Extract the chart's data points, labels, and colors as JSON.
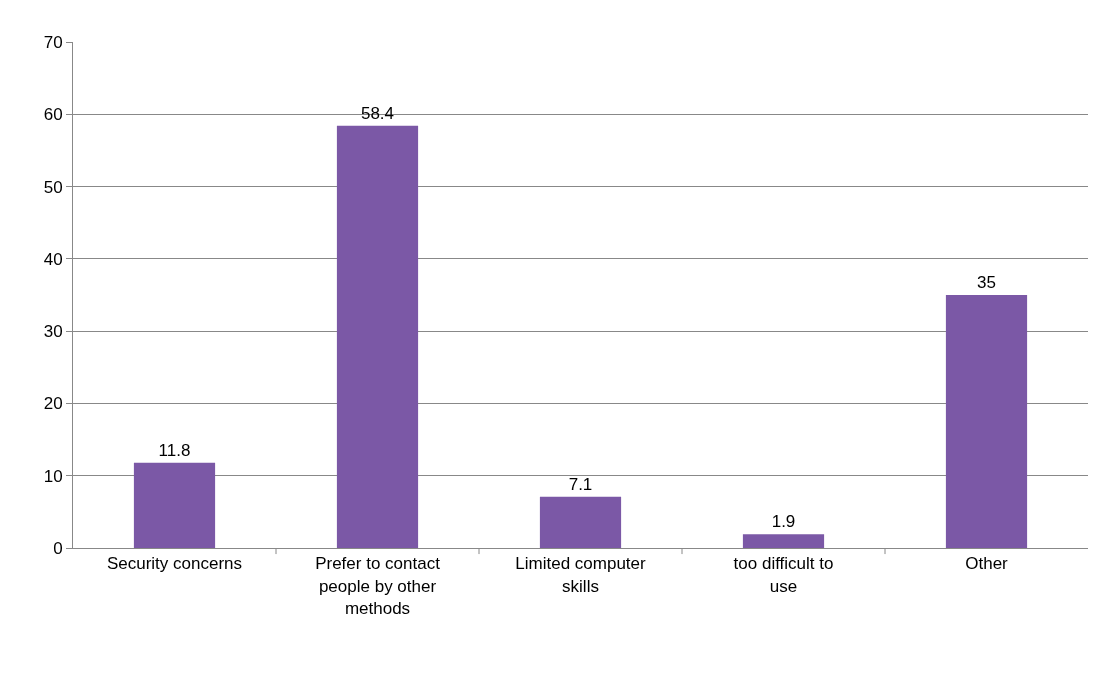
{
  "chart_data": {
    "type": "bar",
    "categories": [
      "Security concerns",
      "Prefer to contact people by other methods",
      "Limited computer skills",
      "too difficult to use",
      "Other"
    ],
    "values": [
      11.8,
      58.4,
      7.1,
      1.9,
      35
    ],
    "color": "#7b58a6",
    "ylim": [
      0,
      70
    ],
    "yticks": [
      0,
      10,
      20,
      30,
      40,
      50,
      60,
      70
    ],
    "grid": "y",
    "legend": false,
    "data_labels": true
  }
}
